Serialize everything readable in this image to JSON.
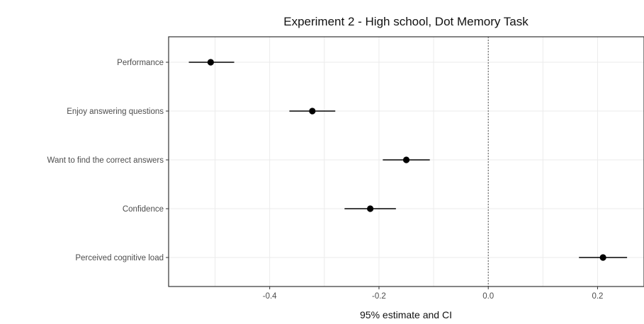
{
  "chart_data": {
    "type": "scatter",
    "subtype": "forest-plot",
    "title": "Experiment 2 - High school, Dot Memory Task",
    "xlabel": "95% estimate and CI",
    "ylabel": "",
    "xlim": [
      -0.585,
      0.285
    ],
    "xticks": [
      -0.4,
      -0.2,
      0.0,
      0.2
    ],
    "xtick_labels": [
      "-0.4",
      "-0.2",
      "0.0",
      "0.2"
    ],
    "reference_line": 0.0,
    "grid": true,
    "categories": [
      "Performance",
      "Enjoy answering questions",
      "Want to find the correct answers",
      "Confidence",
      "Perceived cognitive load"
    ],
    "estimates": [
      -0.508,
      -0.322,
      -0.15,
      -0.216,
      0.21
    ],
    "ci_lower": [
      -0.548,
      -0.364,
      -0.193,
      -0.263,
      0.166
    ],
    "ci_upper": [
      -0.465,
      -0.28,
      -0.107,
      -0.169,
      0.254
    ]
  }
}
